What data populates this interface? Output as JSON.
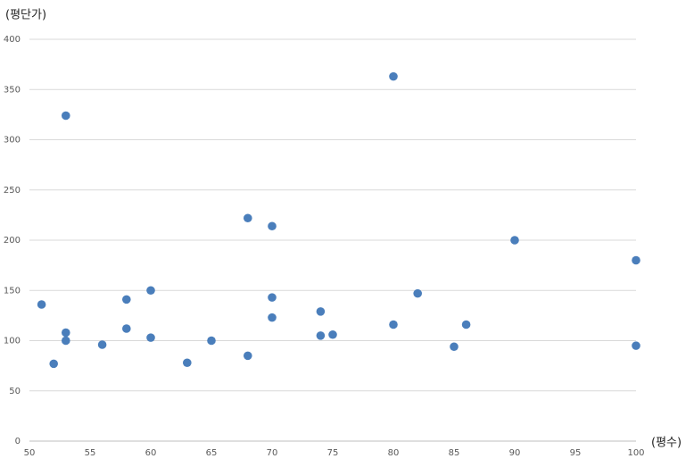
{
  "chart_data": {
    "type": "scatter",
    "x_label": "(평수)",
    "y_label": "(평단가)",
    "series": [
      {
        "color": "#4a7ebb",
        "x": [
          51,
          52,
          53,
          53,
          53,
          56,
          58,
          58,
          60,
          60,
          63,
          65,
          68,
          68,
          70,
          70,
          70,
          74,
          74,
          75,
          80,
          80,
          82,
          85,
          86,
          90,
          100,
          100
        ],
        "values": [
          136,
          77,
          324,
          108,
          100,
          96,
          141,
          112,
          150,
          103,
          78,
          100,
          222,
          85,
          214,
          143,
          123,
          129,
          105,
          106,
          363,
          116,
          147,
          94,
          116,
          200,
          180,
          95
        ]
      }
    ],
    "xlim": [
      50,
      100
    ],
    "xticks": [
      50,
      55,
      60,
      65,
      70,
      75,
      80,
      85,
      90,
      95,
      100
    ],
    "ylim": [
      0,
      400
    ],
    "yticks": [
      0,
      50,
      100,
      150,
      200,
      250,
      300,
      350,
      400
    ],
    "grid": true
  }
}
